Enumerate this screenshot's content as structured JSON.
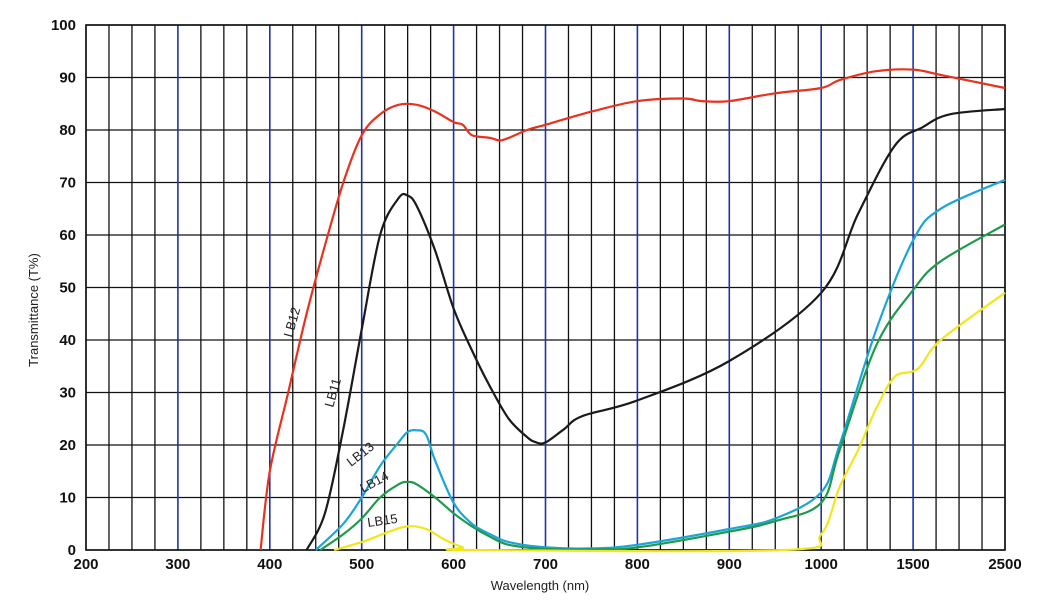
{
  "chart_data": {
    "type": "line",
    "title": "",
    "xlabel": "Wavelength (nm)",
    "ylabel": "Transmittance (T%)",
    "ylim": [
      0,
      100
    ],
    "x_tick_labels": [
      "200",
      "300",
      "400",
      "500",
      "600",
      "700",
      "800",
      "900",
      "1000",
      "1500",
      "2500"
    ],
    "y_tick_labels": [
      "0",
      "10",
      "20",
      "30",
      "40",
      "50",
      "60",
      "70",
      "80",
      "90",
      "100"
    ],
    "grid": true,
    "major_grid_color": "#2233aa",
    "minor_grid_color": "#111111",
    "series": [
      {
        "name": "LB12",
        "color": "#e8321e",
        "points": [
          [
            390,
            0
          ],
          [
            400,
            15
          ],
          [
            420,
            30
          ],
          [
            440,
            45
          ],
          [
            460,
            58
          ],
          [
            480,
            70
          ],
          [
            500,
            79
          ],
          [
            520,
            83
          ],
          [
            540,
            84.8
          ],
          [
            560,
            84.8
          ],
          [
            580,
            83.5
          ],
          [
            600,
            81.5
          ],
          [
            610,
            81
          ],
          [
            620,
            79
          ],
          [
            640,
            78.5
          ],
          [
            650,
            78
          ],
          [
            660,
            78.5
          ],
          [
            680,
            80
          ],
          [
            700,
            81
          ],
          [
            750,
            83.5
          ],
          [
            800,
            85.5
          ],
          [
            850,
            86
          ],
          [
            870,
            85.5
          ],
          [
            900,
            85.5
          ],
          [
            950,
            87
          ],
          [
            1000,
            88
          ],
          [
            1100,
            89.5
          ],
          [
            1300,
            91.2
          ],
          [
            1500,
            91.5
          ],
          [
            1800,
            90.5
          ],
          [
            2500,
            88
          ]
        ]
      },
      {
        "name": "LB11",
        "color": "#1a1a1a",
        "points": [
          [
            440,
            0
          ],
          [
            460,
            7
          ],
          [
            480,
            23
          ],
          [
            500,
            42
          ],
          [
            520,
            60
          ],
          [
            540,
            67
          ],
          [
            550,
            67.5
          ],
          [
            560,
            65.5
          ],
          [
            580,
            57
          ],
          [
            600,
            46
          ],
          [
            620,
            38
          ],
          [
            640,
            31
          ],
          [
            660,
            25
          ],
          [
            680,
            21.5
          ],
          [
            690,
            20.5
          ],
          [
            700,
            20.5
          ],
          [
            720,
            23
          ],
          [
            740,
            25.5
          ],
          [
            800,
            28.5
          ],
          [
            900,
            36
          ],
          [
            1000,
            49
          ],
          [
            1200,
            64
          ],
          [
            1400,
            77
          ],
          [
            1600,
            80.5
          ],
          [
            1900,
            83
          ],
          [
            2500,
            84
          ]
        ]
      },
      {
        "name": "LB13",
        "color": "#1aa6d8",
        "points": [
          [
            450,
            0
          ],
          [
            480,
            5
          ],
          [
            500,
            10
          ],
          [
            520,
            16
          ],
          [
            540,
            20.5
          ],
          [
            550,
            22.5
          ],
          [
            560,
            22.8
          ],
          [
            570,
            22
          ],
          [
            580,
            17
          ],
          [
            600,
            9
          ],
          [
            620,
            5
          ],
          [
            640,
            3
          ],
          [
            660,
            1.5
          ],
          [
            700,
            0.5
          ],
          [
            750,
            0.3
          ],
          [
            800,
            1
          ],
          [
            900,
            4
          ],
          [
            950,
            6
          ],
          [
            1000,
            11
          ],
          [
            1100,
            20
          ],
          [
            1300,
            42
          ],
          [
            1500,
            59
          ],
          [
            1800,
            65
          ],
          [
            2500,
            70.5
          ]
        ]
      },
      {
        "name": "LB14",
        "color": "#1f9a4a",
        "points": [
          [
            455,
            0
          ],
          [
            480,
            3
          ],
          [
            500,
            6
          ],
          [
            520,
            10
          ],
          [
            540,
            12.5
          ],
          [
            550,
            13
          ],
          [
            560,
            12.5
          ],
          [
            580,
            10
          ],
          [
            600,
            7
          ],
          [
            620,
            4.5
          ],
          [
            640,
            2.5
          ],
          [
            660,
            1
          ],
          [
            700,
            0.2
          ],
          [
            750,
            0.1
          ],
          [
            800,
            0.5
          ],
          [
            900,
            3.5
          ],
          [
            950,
            5.5
          ],
          [
            1000,
            9
          ],
          [
            1100,
            19
          ],
          [
            1300,
            39
          ],
          [
            1500,
            49.5
          ],
          [
            1800,
            55
          ],
          [
            2500,
            62
          ]
        ]
      },
      {
        "name": "LB15",
        "color": "#f2e61c",
        "points": [
          [
            470,
            0
          ],
          [
            500,
            1.5
          ],
          [
            530,
            3.5
          ],
          [
            550,
            4.5
          ],
          [
            570,
            4
          ],
          [
            590,
            2
          ],
          [
            610,
            0.5
          ],
          [
            620,
            0
          ],
          [
            960,
            0
          ],
          [
            1000,
            3
          ],
          [
            1100,
            12
          ],
          [
            1200,
            19
          ],
          [
            1300,
            27
          ],
          [
            1400,
            33
          ],
          [
            1550,
            34.5
          ],
          [
            1800,
            40
          ],
          [
            2500,
            49
          ]
        ]
      }
    ]
  }
}
